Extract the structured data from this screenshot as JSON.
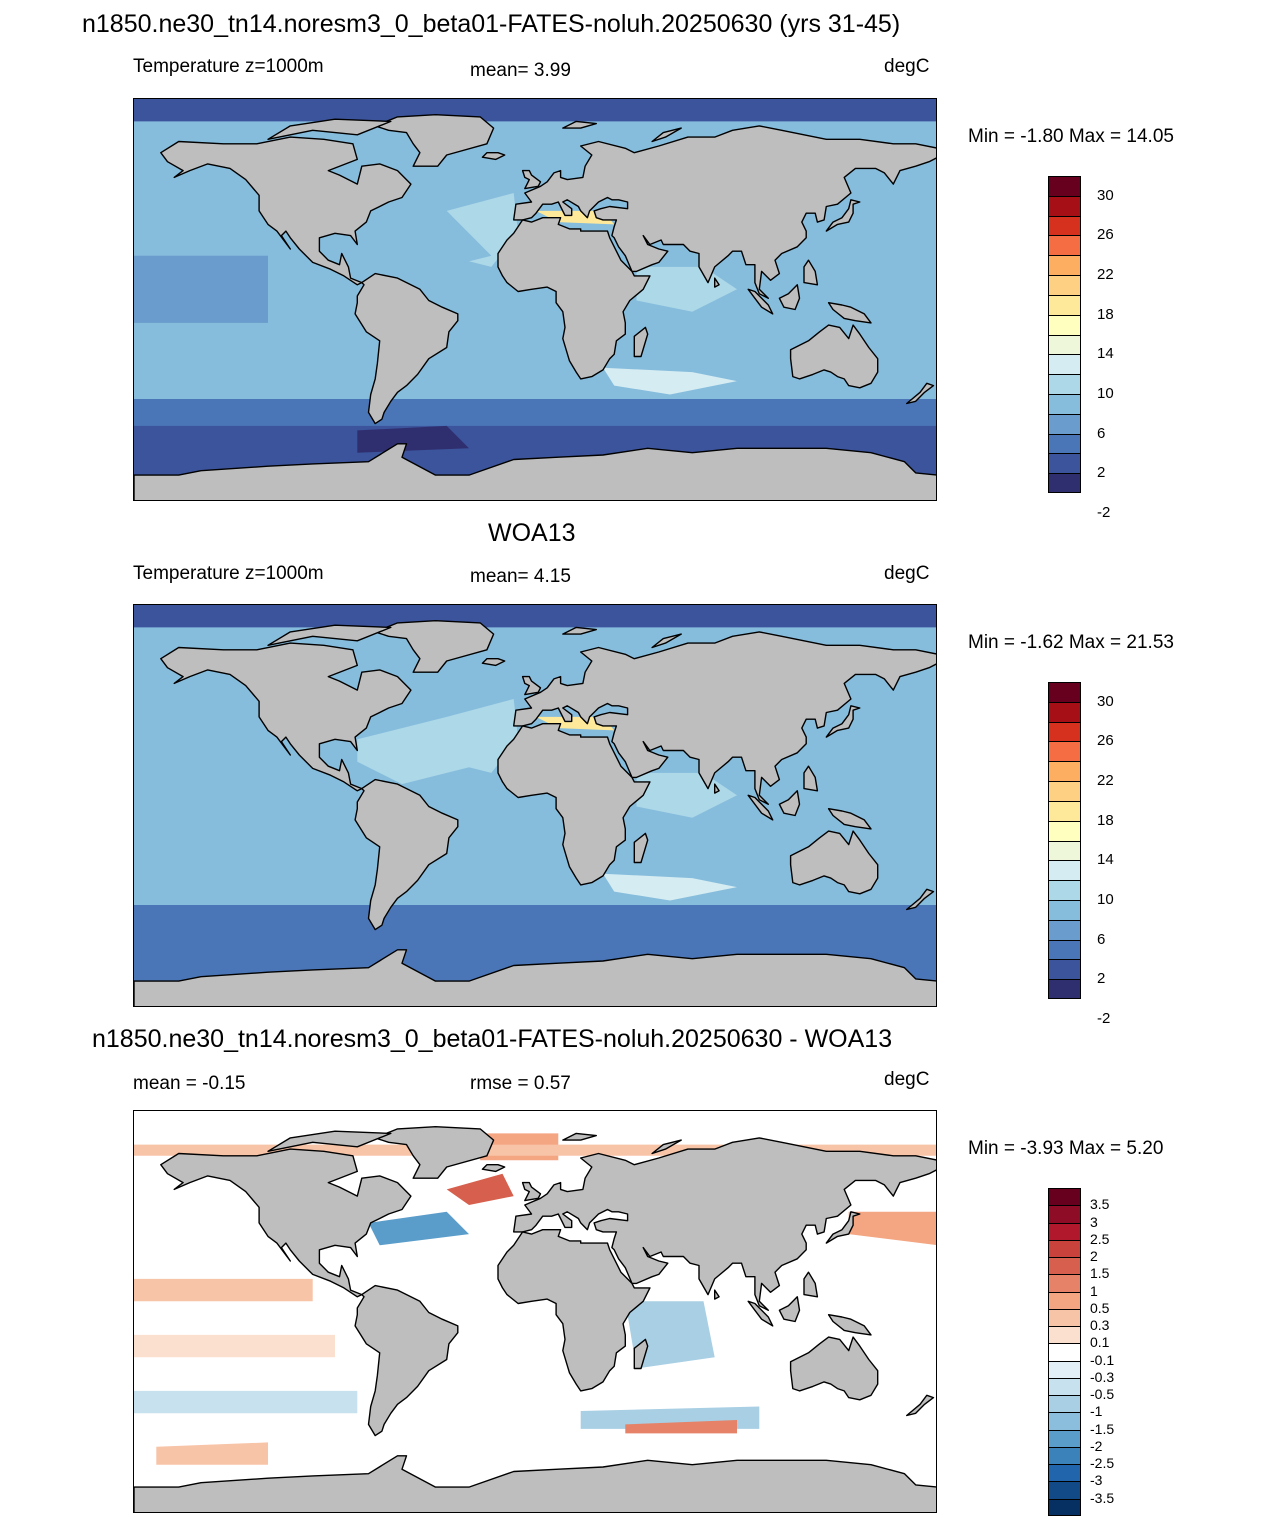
{
  "panels": [
    {
      "title": "n1850.ne30_tn14.noresm3_0_beta01-FATES-noluh.20250630 (yrs 31-45)",
      "left_label": "Temperature z=1000m",
      "center_label": "mean=   3.99",
      "units": "degC",
      "minmax": "Min =  -1.80 Max =  14.05",
      "type": "model"
    },
    {
      "title": "WOA13",
      "left_label": "Temperature z=1000m",
      "center_label": "mean=   4.15",
      "units": "degC",
      "minmax": "Min =  -1.62 Max =  21.53",
      "type": "obs"
    },
    {
      "title": "n1850.ne30_tn14.noresm3_0_beta01-FATES-noluh.20250630 - WOA13",
      "left_label": "mean =  -0.15",
      "center_label": "rmse =   0.57",
      "units": "degC",
      "minmax": "Min =  -3.93 Max =   5.20",
      "type": "diff"
    }
  ],
  "colorbar_abs": {
    "labels": [
      "30",
      "26",
      "22",
      "18",
      "14",
      "10",
      "6",
      "2",
      "-2"
    ],
    "colors": [
      "#67001f",
      "#a50f15",
      "#d6301e",
      "#f46d43",
      "#fdae61",
      "#fdd084",
      "#fee99a",
      "#ffffbf",
      "#eef7da",
      "#d4ecf2",
      "#acd8e8",
      "#86bcdc",
      "#6a9ccd",
      "#4a76b8",
      "#3c549c",
      "#2f2f70"
    ]
  },
  "colorbar_diff": {
    "labels": [
      "3.5",
      "3",
      "2.5",
      "2",
      "1.5",
      "1",
      "0.5",
      "0.3",
      "0.1",
      "-0.1",
      "-0.3",
      "-0.5",
      "-1",
      "-1.5",
      "-2",
      "-2.5",
      "-3",
      "-3.5"
    ],
    "colors": [
      "#67001f",
      "#8e0c25",
      "#b2182b",
      "#c9433c",
      "#d6604d",
      "#e58267",
      "#f4a582",
      "#f8c4a8",
      "#fbe0d0",
      "#ffffff",
      "#e3eff6",
      "#c8e1ee",
      "#a8cfe4",
      "#8abedc",
      "#5b9dca",
      "#3b82bb",
      "#2166ac",
      "#114a87",
      "#053061"
    ]
  },
  "colors": {
    "land": "#bebebe",
    "coast": "#000000"
  }
}
